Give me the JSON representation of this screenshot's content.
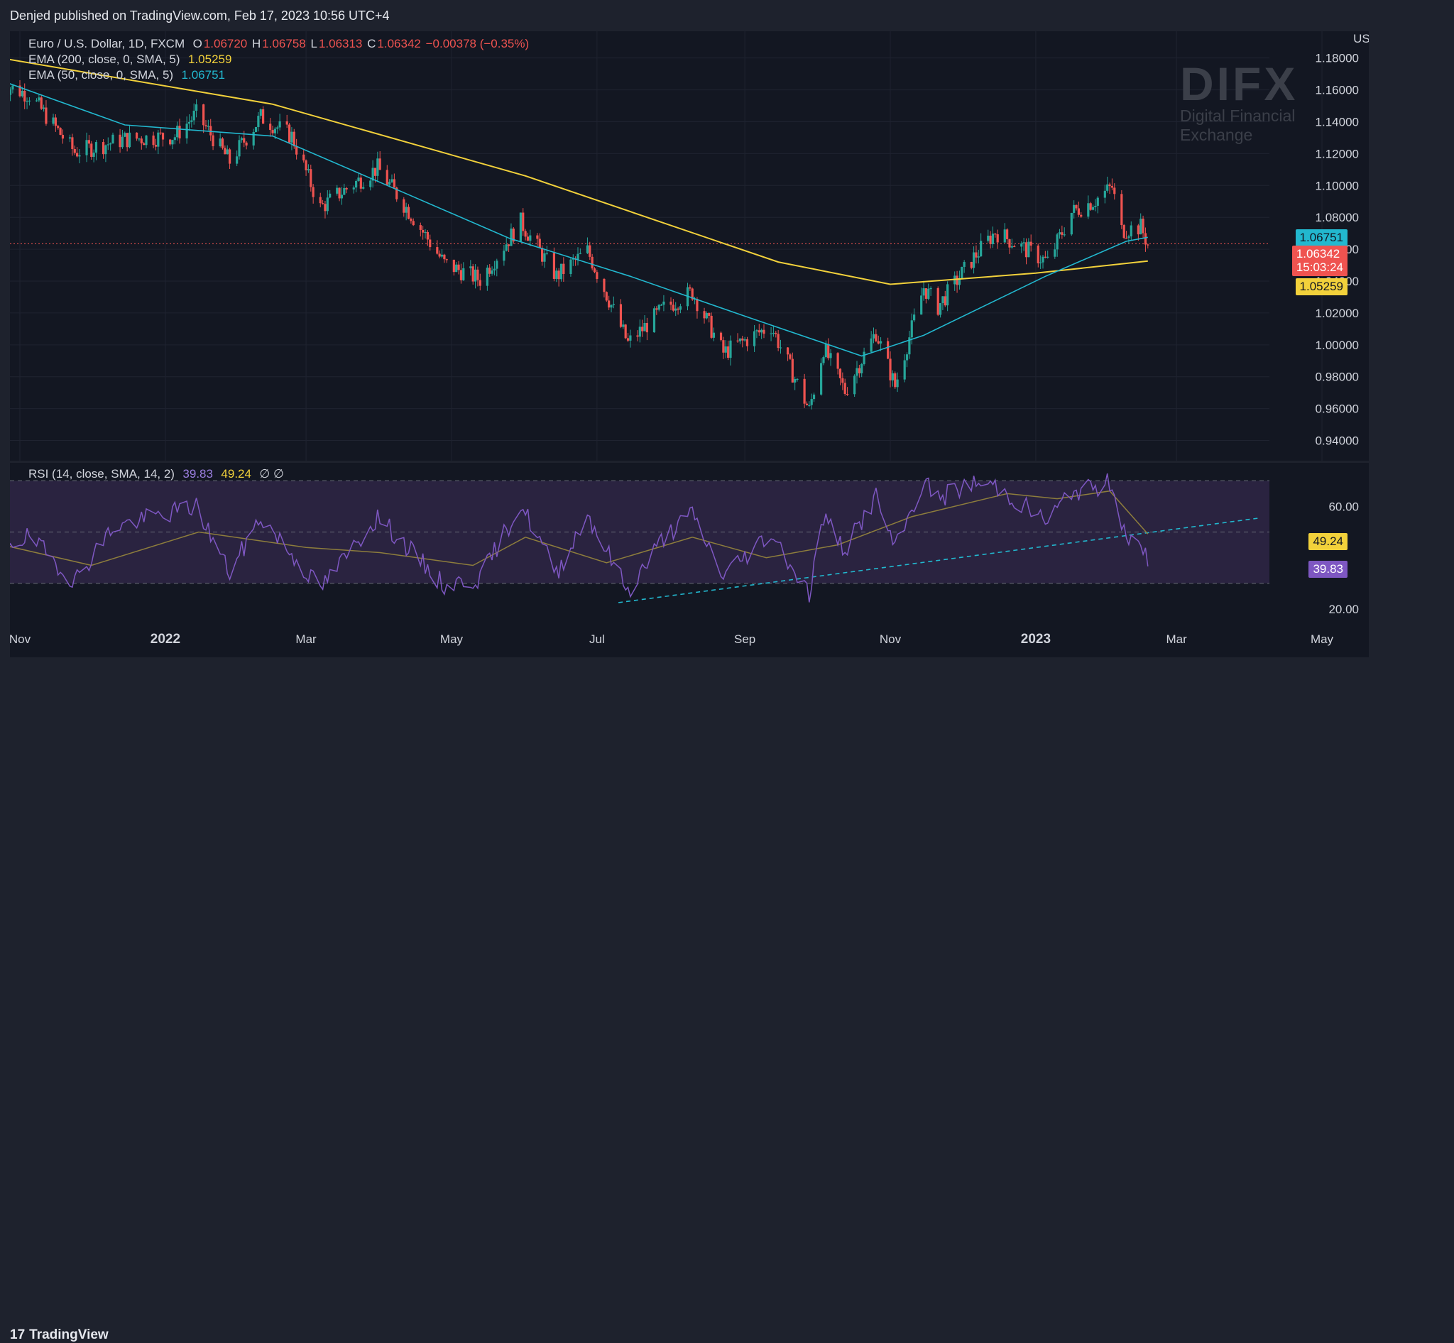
{
  "header": {
    "published": "Denjed published on TradingView.com, Feb 17, 2023 10:56 UTC+4"
  },
  "legend": {
    "symbol": "Euro / U.S. Dollar, 1D, FXCM",
    "o_label": "O",
    "o": "1.06720",
    "h_label": "H",
    "h": "1.06758",
    "l_label": "L",
    "l": "1.06313",
    "c_label": "C",
    "c": "1.06342",
    "change": "−0.00378 (−0.35%)",
    "ema200": "EMA (200, close, 0, SMA, 5)",
    "ema200_val": "1.05259",
    "ema50": "EMA (50, close, 0, SMA, 5)",
    "ema50_val": "1.06751",
    "rsi": "RSI (14, close, SMA, 14, 2)",
    "rsi_val": "39.83",
    "rsi_ma_val": "49.24",
    "rsi_extra": "∅ ∅"
  },
  "watermark": {
    "name": "DIFX",
    "tagline": "Digital Financial Exchange"
  },
  "footer": {
    "brand": "TradingView",
    "brand_mark": "17"
  },
  "badges": {
    "ema50": "1.06751",
    "price": "1.06342",
    "countdown": "15:03:24",
    "ema200": "1.05259",
    "rsi_ma": "49.24",
    "rsi": "39.83"
  },
  "colors": {
    "bg": "#131722",
    "up": "#26a69a",
    "down": "#ef5350",
    "ema200": "#f2d13b",
    "ema50": "#22b8cf",
    "rsi": "#7e57c2",
    "rsi_ma": "#8d7d3c",
    "trend": "#22b8cf"
  },
  "chart_data": [
    {
      "type": "candlestick",
      "title": "Euro / U.S. Dollar, 1D, FXCM",
      "currency": "USD",
      "ylim": [
        0.93,
        1.195
      ],
      "yticks": [
        "1.18000",
        "1.16000",
        "1.14000",
        "1.12000",
        "1.10000",
        "1.08000",
        "1.06000",
        "1.04000",
        "1.02000",
        "1.00000",
        "0.98000",
        "0.96000",
        "0.94000"
      ],
      "xticks": [
        "Nov",
        "2022",
        "Mar",
        "May",
        "Jul",
        "Sep",
        "Nov",
        "2023",
        "Mar",
        "May"
      ],
      "last_price": 1.06342,
      "close_path": [
        [
          "2021-10-25",
          1.163
        ],
        [
          "2021-11-05",
          1.157
        ],
        [
          "2021-11-24",
          1.121
        ],
        [
          "2021-12-15",
          1.129
        ],
        [
          "2022-01-05",
          1.131
        ],
        [
          "2022-01-14",
          1.145
        ],
        [
          "2022-01-28",
          1.115
        ],
        [
          "2022-02-10",
          1.143
        ],
        [
          "2022-02-23",
          1.131
        ],
        [
          "2022-03-07",
          1.086
        ],
        [
          "2022-03-15",
          1.095
        ],
        [
          "2022-03-31",
          1.111
        ],
        [
          "2022-04-14",
          1.082
        ],
        [
          "2022-04-28",
          1.051
        ],
        [
          "2022-05-13",
          1.041
        ],
        [
          "2022-05-30",
          1.077
        ],
        [
          "2022-06-14",
          1.043
        ],
        [
          "2022-06-27",
          1.059
        ],
        [
          "2022-07-14",
          1.001
        ],
        [
          "2022-07-29",
          1.023
        ],
        [
          "2022-08-10",
          1.033
        ],
        [
          "2022-08-23",
          0.995
        ],
        [
          "2022-09-12",
          1.012
        ],
        [
          "2022-09-28",
          0.959
        ],
        [
          "2022-10-04",
          0.998
        ],
        [
          "2022-10-13",
          0.971
        ],
        [
          "2022-10-26",
          1.008
        ],
        [
          "2022-11-03",
          0.974
        ],
        [
          "2022-11-15",
          1.036
        ],
        [
          "2022-11-21",
          1.024
        ],
        [
          "2022-12-05",
          1.053
        ],
        [
          "2022-12-15",
          1.071
        ],
        [
          "2023-01-06",
          1.052
        ],
        [
          "2023-01-16",
          1.083
        ],
        [
          "2023-01-26",
          1.091
        ],
        [
          "2023-02-02",
          1.099
        ],
        [
          "2023-02-06",
          1.072
        ],
        [
          "2023-02-14",
          1.074
        ],
        [
          "2023-02-17",
          1.063
        ]
      ],
      "ema200_path": [
        [
          "2021-10-20",
          1.181
        ],
        [
          "2022-02-15",
          1.151
        ],
        [
          "2022-06-01",
          1.106
        ],
        [
          "2022-09-15",
          1.052
        ],
        [
          "2022-11-01",
          1.038
        ],
        [
          "2023-01-01",
          1.045
        ],
        [
          "2023-02-17",
          1.05259
        ]
      ],
      "ema50_path": [
        [
          "2021-10-20",
          1.168
        ],
        [
          "2021-12-15",
          1.138
        ],
        [
          "2022-02-15",
          1.131
        ],
        [
          "2022-04-01",
          1.102
        ],
        [
          "2022-05-25",
          1.067
        ],
        [
          "2022-07-15",
          1.043
        ],
        [
          "2022-09-01",
          1.018
        ],
        [
          "2022-10-20",
          0.993
        ],
        [
          "2022-11-15",
          1.006
        ],
        [
          "2023-01-05",
          1.043
        ],
        [
          "2023-02-08",
          1.065
        ],
        [
          "2023-02-17",
          1.06751
        ]
      ]
    },
    {
      "type": "line",
      "title": "RSI (14, close, SMA, 14, 2)",
      "ylim": [
        15,
        77
      ],
      "yticks": [
        "60.00",
        "20.00"
      ],
      "bands": [
        30,
        50,
        70
      ],
      "rsi_last": 39.83,
      "rsi_ma_last": 49.24,
      "rsi_path": [
        [
          "2021-10-20",
          44
        ],
        [
          "2021-11-05",
          48
        ],
        [
          "2021-11-24",
          31
        ],
        [
          "2021-12-10",
          52
        ],
        [
          "2022-01-05",
          58
        ],
        [
          "2022-01-14",
          60
        ],
        [
          "2022-01-28",
          34
        ],
        [
          "2022-02-10",
          56
        ],
        [
          "2022-02-25",
          39
        ],
        [
          "2022-03-07",
          28
        ],
        [
          "2022-03-31",
          56
        ],
        [
          "2022-04-28",
          29
        ],
        [
          "2022-05-13",
          32
        ],
        [
          "2022-05-30",
          61
        ],
        [
          "2022-06-14",
          34
        ],
        [
          "2022-06-27",
          57
        ],
        [
          "2022-07-14",
          27
        ],
        [
          "2022-07-29",
          48
        ],
        [
          "2022-08-10",
          57
        ],
        [
          "2022-08-23",
          33
        ],
        [
          "2022-09-12",
          50
        ],
        [
          "2022-09-28",
          26
        ],
        [
          "2022-10-04",
          56
        ],
        [
          "2022-10-13",
          43
        ],
        [
          "2022-10-26",
          64
        ],
        [
          "2022-11-03",
          43
        ],
        [
          "2022-11-15",
          70
        ],
        [
          "2022-11-21",
          63
        ],
        [
          "2022-12-05",
          69
        ],
        [
          "2022-12-15",
          68
        ],
        [
          "2023-01-06",
          54
        ],
        [
          "2023-01-16",
          66
        ],
        [
          "2023-01-26",
          67
        ],
        [
          "2023-02-02",
          70
        ],
        [
          "2023-02-06",
          53
        ],
        [
          "2023-02-14",
          42
        ],
        [
          "2023-02-17",
          39.83
        ]
      ],
      "rsi_ma_path": [
        [
          "2021-10-20",
          46
        ],
        [
          "2021-12-01",
          37
        ],
        [
          "2022-01-15",
          50
        ],
        [
          "2022-03-01",
          44
        ],
        [
          "2022-04-01",
          42
        ],
        [
          "2022-05-10",
          37
        ],
        [
          "2022-06-01",
          48
        ],
        [
          "2022-07-05",
          38
        ],
        [
          "2022-08-10",
          48
        ],
        [
          "2022-09-10",
          40
        ],
        [
          "2022-10-10",
          45
        ],
        [
          "2022-11-10",
          56
        ],
        [
          "2022-12-20",
          65
        ],
        [
          "2023-01-10",
          63
        ],
        [
          "2023-02-01",
          66
        ],
        [
          "2023-02-17",
          49.24
        ]
      ],
      "trendline": [
        [
          "2022-07-10",
          22.5
        ],
        [
          "2023-04-05",
          55.5
        ]
      ]
    }
  ]
}
